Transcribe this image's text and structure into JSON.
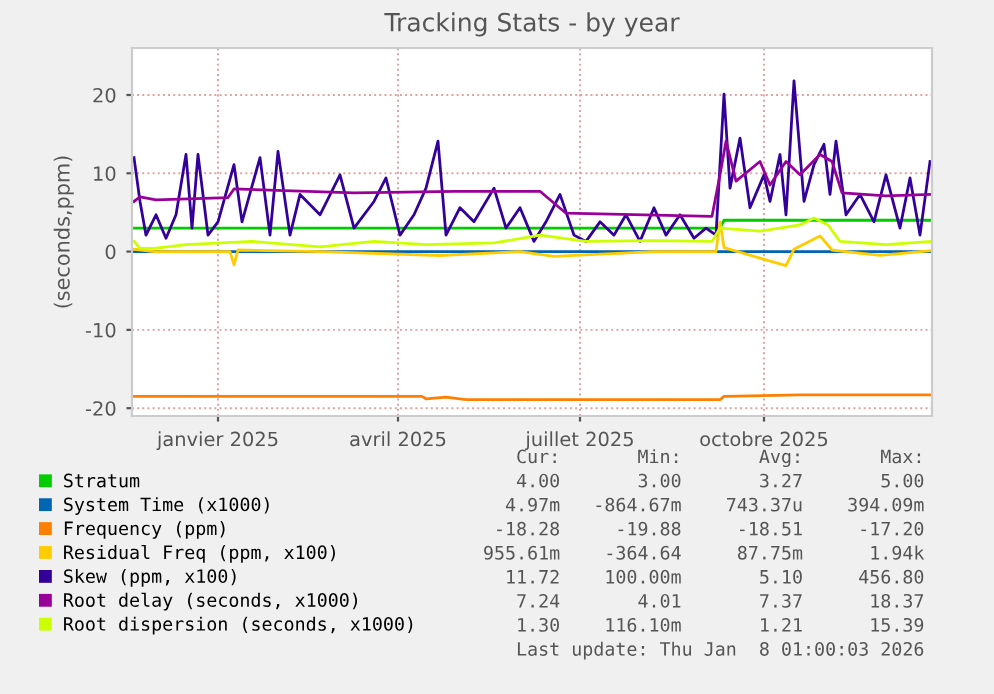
{
  "chart_data": {
    "type": "line",
    "title": "Tracking Stats - by year",
    "ylabel": "(seconds,ppm)",
    "xlim": [
      "2024-12-04",
      "2026-01-08"
    ],
    "ylim": [
      -21,
      26
    ],
    "yticks": [
      -20,
      -10,
      0,
      10,
      20
    ],
    "xticks": [
      {
        "value": "2025-01-16",
        "label": "janvier 2025"
      },
      {
        "value": "2025-04-16",
        "label": "avril 2025"
      },
      {
        "value": "2025-07-16",
        "label": "juillet 2025"
      },
      {
        "value": "2025-10-16",
        "label": "octobre 2025"
      }
    ],
    "grid": true,
    "legend": "bottom",
    "marker": "none",
    "line_style": "solid",
    "series": [
      {
        "name": "Stratum",
        "color": "#00cc00",
        "x": [
          "2024-12-05",
          "2025-09-24",
          "2025-09-26",
          "2026-01-07"
        ],
        "values": [
          3,
          3,
          4,
          4
        ]
      },
      {
        "name": "System Time (x1000)",
        "color": "#0066b3",
        "x": [
          "2024-12-05",
          "2026-01-07"
        ],
        "values": [
          0,
          0
        ]
      },
      {
        "name": "Frequency (ppm)",
        "color": "#ff8000",
        "x": [
          "2024-12-05",
          "2025-04-28",
          "2025-04-30",
          "2025-05-10",
          "2025-05-20",
          "2025-09-24",
          "2025-09-26",
          "2025-11-03",
          "2026-01-07"
        ],
        "values": [
          -18.5,
          -18.5,
          -18.8,
          -18.6,
          -18.9,
          -18.9,
          -18.5,
          -18.3,
          -18.3
        ]
      },
      {
        "name": "Residual Freq (ppm, x100)",
        "color": "#ffcc00",
        "x": [
          "2024-12-05",
          "2024-12-15",
          "2025-01-22",
          "2025-01-24",
          "2025-01-26",
          "2025-03-08",
          "2025-05-07",
          "2025-06-16",
          "2025-07-03",
          "2025-08-22",
          "2025-09-22",
          "2025-09-24",
          "2025-09-26",
          "2025-10-27",
          "2025-10-31",
          "2025-11-13",
          "2025-11-19",
          "2025-12-13",
          "2026-01-07"
        ],
        "values": [
          0.3,
          0,
          0,
          -1.7,
          0.2,
          0,
          -0.5,
          0,
          -0.6,
          0,
          0,
          3.8,
          0.5,
          -1.8,
          0.3,
          2.0,
          0.2,
          -0.5,
          0.1
        ]
      },
      {
        "name": "Skew (ppm, x100)",
        "color": "#330099",
        "x": [
          "2024-12-05",
          "2024-12-08",
          "2024-12-11",
          "2024-12-16",
          "2024-12-21",
          "2024-12-26",
          "2024-12-31",
          "2025-01-03",
          "2025-01-06",
          "2025-01-11",
          "2025-01-16",
          "2025-01-24",
          "2025-01-28",
          "2025-02-06",
          "2025-02-11",
          "2025-02-15",
          "2025-02-21",
          "2025-02-26",
          "2025-03-08",
          "2025-03-18",
          "2025-03-25",
          "2025-04-04",
          "2025-04-10",
          "2025-04-17",
          "2025-04-24",
          "2025-04-30",
          "2025-05-06",
          "2025-05-10",
          "2025-05-17",
          "2025-05-24",
          "2025-06-03",
          "2025-06-09",
          "2025-06-16",
          "2025-06-23",
          "2025-06-29",
          "2025-07-06",
          "2025-07-13",
          "2025-07-19",
          "2025-07-26",
          "2025-08-02",
          "2025-08-08",
          "2025-08-15",
          "2025-08-22",
          "2025-08-28",
          "2025-09-04",
          "2025-09-11",
          "2025-09-17",
          "2025-09-22",
          "2025-09-26",
          "2025-09-29",
          "2025-10-04",
          "2025-10-09",
          "2025-10-16",
          "2025-10-19",
          "2025-10-24",
          "2025-10-27",
          "2025-10-31",
          "2025-11-05",
          "2025-11-10",
          "2025-11-15",
          "2025-11-18",
          "2025-11-21",
          "2025-11-26",
          "2025-12-03",
          "2025-12-10",
          "2025-12-16",
          "2025-12-23",
          "2025-12-28",
          "2026-01-02",
          "2026-01-07"
        ],
        "values": [
          12.0,
          6.4,
          2.1,
          4.7,
          1.7,
          4.7,
          12.4,
          3.0,
          12.4,
          2.1,
          3.8,
          11.1,
          3.8,
          12.0,
          2.1,
          12.8,
          2.1,
          7.3,
          4.7,
          9.8,
          3.0,
          6.4,
          9.4,
          2.1,
          4.7,
          8.1,
          14.1,
          2.1,
          5.6,
          3.8,
          8.1,
          3.0,
          5.6,
          1.3,
          3.8,
          7.3,
          2.1,
          1.3,
          3.8,
          2.1,
          4.7,
          1.3,
          5.6,
          2.1,
          4.7,
          1.7,
          3.0,
          2.1,
          20.1,
          8.1,
          14.5,
          5.6,
          9.8,
          6.4,
          12.4,
          4.7,
          21.8,
          6.4,
          11.1,
          13.7,
          7.3,
          14.1,
          4.7,
          7.3,
          3.8,
          9.8,
          3.0,
          9.4,
          2.1,
          11.5
        ]
      },
      {
        "name": "Root delay (seconds, x1000)",
        "color": "#990099",
        "x": [
          "2024-12-05",
          "2024-12-08",
          "2024-12-16",
          "2025-01-21",
          "2025-01-24",
          "2025-03-25",
          "2025-05-14",
          "2025-06-26",
          "2025-07-09",
          "2025-09-20",
          "2025-09-24",
          "2025-09-27",
          "2025-10-02",
          "2025-10-14",
          "2025-10-19",
          "2025-10-27",
          "2025-11-03",
          "2025-11-13",
          "2025-11-19",
          "2025-11-24",
          "2025-12-16",
          "2026-01-07"
        ],
        "values": [
          6.4,
          7.0,
          6.6,
          6.9,
          8.0,
          7.5,
          7.7,
          7.7,
          4.9,
          4.5,
          9.8,
          14.1,
          9.0,
          11.5,
          8.5,
          11.5,
          9.8,
          12.4,
          11.5,
          7.5,
          7.1,
          7.3
        ]
      },
      {
        "name": "Root dispersion (seconds, x1000)",
        "color": "#ccff00",
        "x": [
          "2024-12-05",
          "2024-12-08",
          "2024-12-15",
          "2024-12-31",
          "2025-02-02",
          "2025-03-08",
          "2025-04-04",
          "2025-04-30",
          "2025-06-03",
          "2025-06-26",
          "2025-07-19",
          "2025-08-22",
          "2025-09-20",
          "2025-09-24",
          "2025-10-14",
          "2025-11-03",
          "2025-11-10",
          "2025-11-17",
          "2025-11-23",
          "2025-12-16",
          "2026-01-07"
        ],
        "values": [
          1.3,
          0.4,
          0.4,
          0.9,
          1.3,
          0.6,
          1.3,
          0.9,
          1.1,
          2.1,
          1.3,
          1.4,
          1.3,
          3.0,
          2.6,
          3.4,
          4.3,
          3.4,
          1.3,
          0.9,
          1.3
        ]
      }
    ],
    "annotations": [
      "      Cur:       Min:       Avg:       Max:",
      "      4.00       3.00       3.27       5.00",
      "     4.97m   -864.67m    743.37u    394.09m",
      "    -18.28     -19.88     -18.51     -17.20",
      "   955.61m    -364.64     87.75m      1.94k",
      "     11.72    100.00m       5.10     456.80",
      "      7.24       4.01       7.37      18.37",
      "      1.30    116.10m       1.21      15.39",
      "Last update: Thu Jan  8 01:00:03 2026"
    ]
  }
}
